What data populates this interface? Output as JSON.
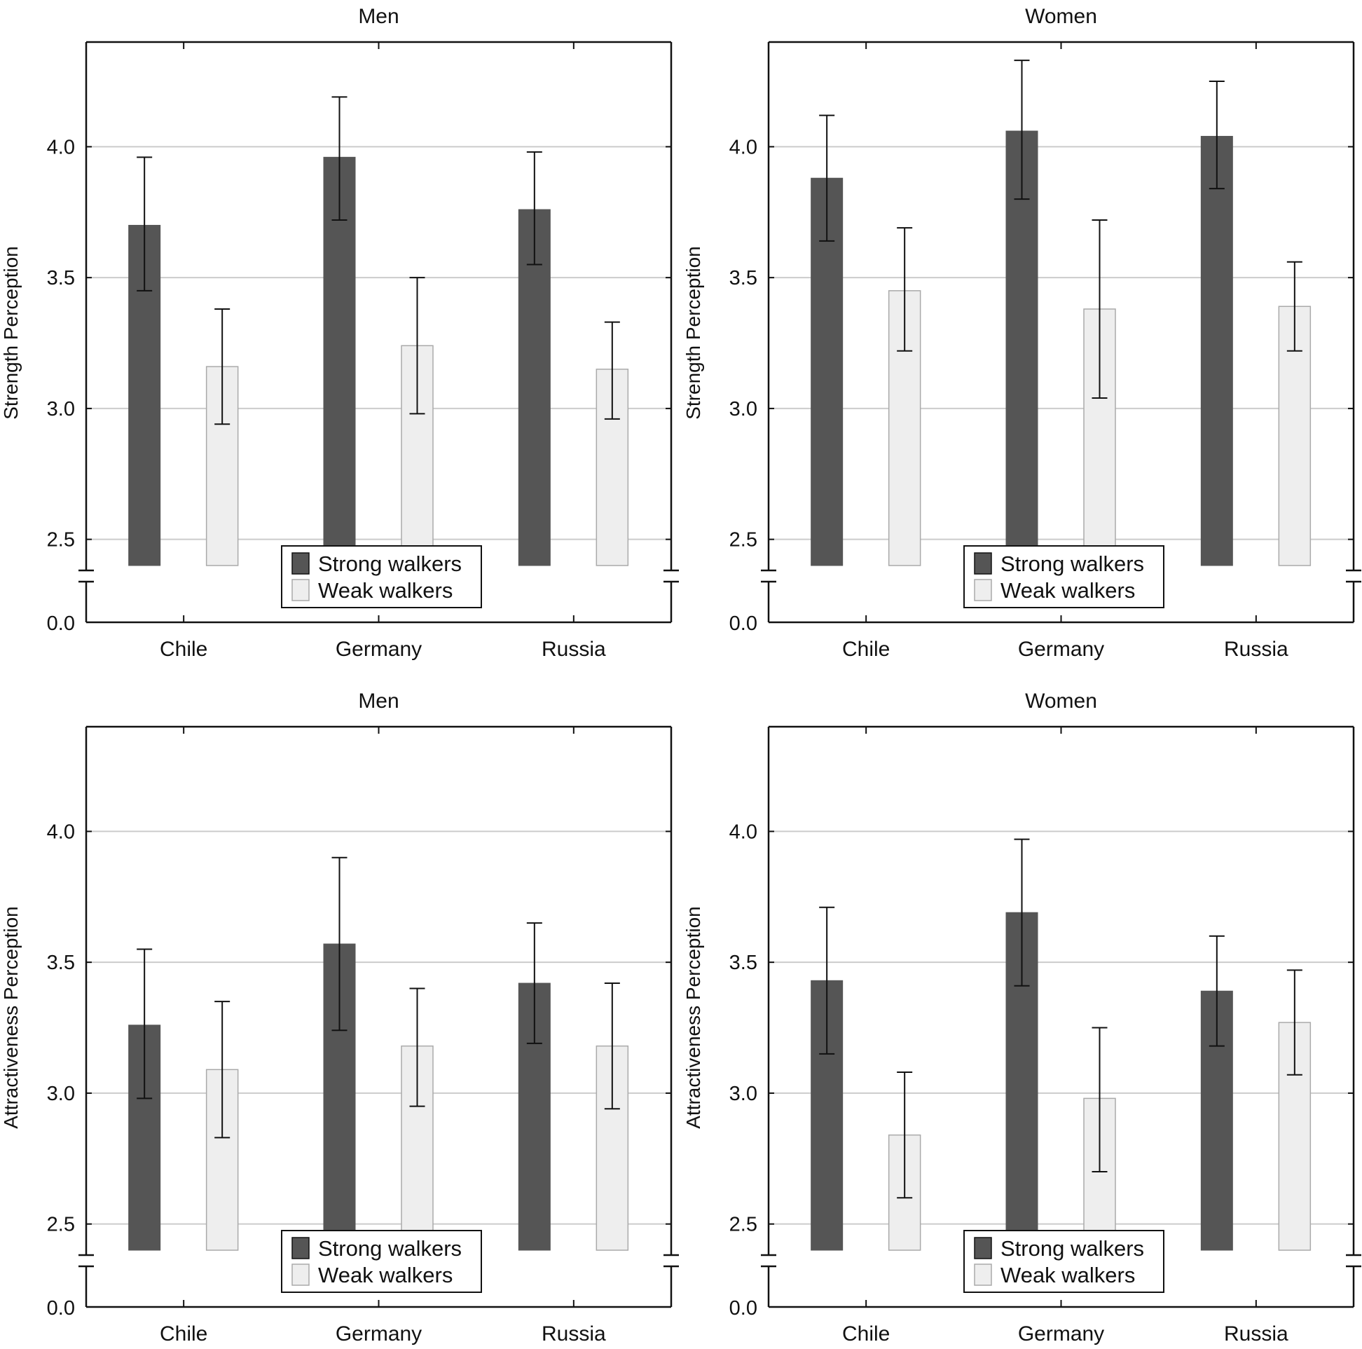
{
  "chart_data": [
    {
      "type": "bar",
      "title": "Men",
      "ylabel": "Strength Perception",
      "xlabel": "",
      "categories": [
        "Chile",
        "Germany",
        "Russia"
      ],
      "ylim": [
        0.0,
        4.4
      ],
      "axis_break": [
        0.3,
        2.4
      ],
      "yticks": [
        "2.5",
        "3.0",
        "3.5",
        "4.0"
      ],
      "ybase_tick": "0.0",
      "series": [
        {
          "name": "Strong walkers",
          "values": [
            3.7,
            3.96,
            3.76
          ],
          "err_low": [
            3.45,
            3.72,
            3.55
          ],
          "err_high": [
            3.96,
            4.19,
            3.98
          ]
        },
        {
          "name": "Weak walkers",
          "values": [
            3.16,
            3.24,
            3.15
          ],
          "err_low": [
            2.94,
            2.98,
            2.96
          ],
          "err_high": [
            3.38,
            3.5,
            3.33
          ]
        }
      ],
      "legend": {
        "position": "bottom-center",
        "entries": [
          "Strong walkers",
          "Weak walkers"
        ]
      },
      "grid": true
    },
    {
      "type": "bar",
      "title": "Women",
      "ylabel": "Strength Perception",
      "xlabel": "",
      "categories": [
        "Chile",
        "Germany",
        "Russia"
      ],
      "ylim": [
        0.0,
        4.4
      ],
      "axis_break": [
        0.3,
        2.4
      ],
      "yticks": [
        "2.5",
        "3.0",
        "3.5",
        "4.0"
      ],
      "ybase_tick": "0.0",
      "series": [
        {
          "name": "Strong walkers",
          "values": [
            3.88,
            4.06,
            4.04
          ],
          "err_low": [
            3.64,
            3.8,
            3.84
          ],
          "err_high": [
            4.12,
            4.33,
            4.25
          ]
        },
        {
          "name": "Weak walkers",
          "values": [
            3.45,
            3.38,
            3.39
          ],
          "err_low": [
            3.22,
            3.04,
            3.22
          ],
          "err_high": [
            3.69,
            3.72,
            3.56
          ]
        }
      ],
      "legend": {
        "position": "bottom-center",
        "entries": [
          "Strong walkers",
          "Weak walkers"
        ]
      },
      "grid": true
    },
    {
      "type": "bar",
      "title": "Men",
      "ylabel": "Attractiveness Perception",
      "xlabel": "",
      "categories": [
        "Chile",
        "Germany",
        "Russia"
      ],
      "ylim": [
        0.0,
        4.4
      ],
      "axis_break": [
        0.3,
        2.4
      ],
      "yticks": [
        "2.5",
        "3.0",
        "3.5",
        "4.0"
      ],
      "ybase_tick": "0.0",
      "series": [
        {
          "name": "Strong walkers",
          "values": [
            3.26,
            3.57,
            3.42
          ],
          "err_low": [
            2.98,
            3.24,
            3.19
          ],
          "err_high": [
            3.55,
            3.9,
            3.65
          ]
        },
        {
          "name": "Weak walkers",
          "values": [
            3.09,
            3.18,
            3.18
          ],
          "err_low": [
            2.83,
            2.95,
            2.94
          ],
          "err_high": [
            3.35,
            3.4,
            3.42
          ]
        }
      ],
      "legend": {
        "position": "bottom-center",
        "entries": [
          "Strong walkers",
          "Weak walkers"
        ]
      },
      "grid": true
    },
    {
      "type": "bar",
      "title": "Women",
      "ylabel": "Attractiveness Perception",
      "xlabel": "",
      "categories": [
        "Chile",
        "Germany",
        "Russia"
      ],
      "ylim": [
        0.0,
        4.4
      ],
      "axis_break": [
        0.3,
        2.4
      ],
      "yticks": [
        "2.5",
        "3.0",
        "3.5",
        "4.0"
      ],
      "ybase_tick": "0.0",
      "series": [
        {
          "name": "Strong walkers",
          "values": [
            3.43,
            3.69,
            3.39
          ],
          "err_low": [
            3.15,
            3.41,
            3.18
          ],
          "err_high": [
            3.71,
            3.97,
            3.6
          ]
        },
        {
          "name": "Weak walkers",
          "values": [
            2.84,
            2.98,
            3.27
          ],
          "err_low": [
            2.6,
            2.7,
            3.07
          ],
          "err_high": [
            3.08,
            3.25,
            3.47
          ]
        }
      ],
      "legend": {
        "position": "bottom-center",
        "entries": [
          "Strong walkers",
          "Weak walkers"
        ]
      },
      "grid": true
    }
  ],
  "colors": {
    "strong": "#555555",
    "weak": "#eeeeee",
    "weak_border": "#aaaaaa",
    "grid": "#cccccc",
    "axis": "#111111"
  }
}
